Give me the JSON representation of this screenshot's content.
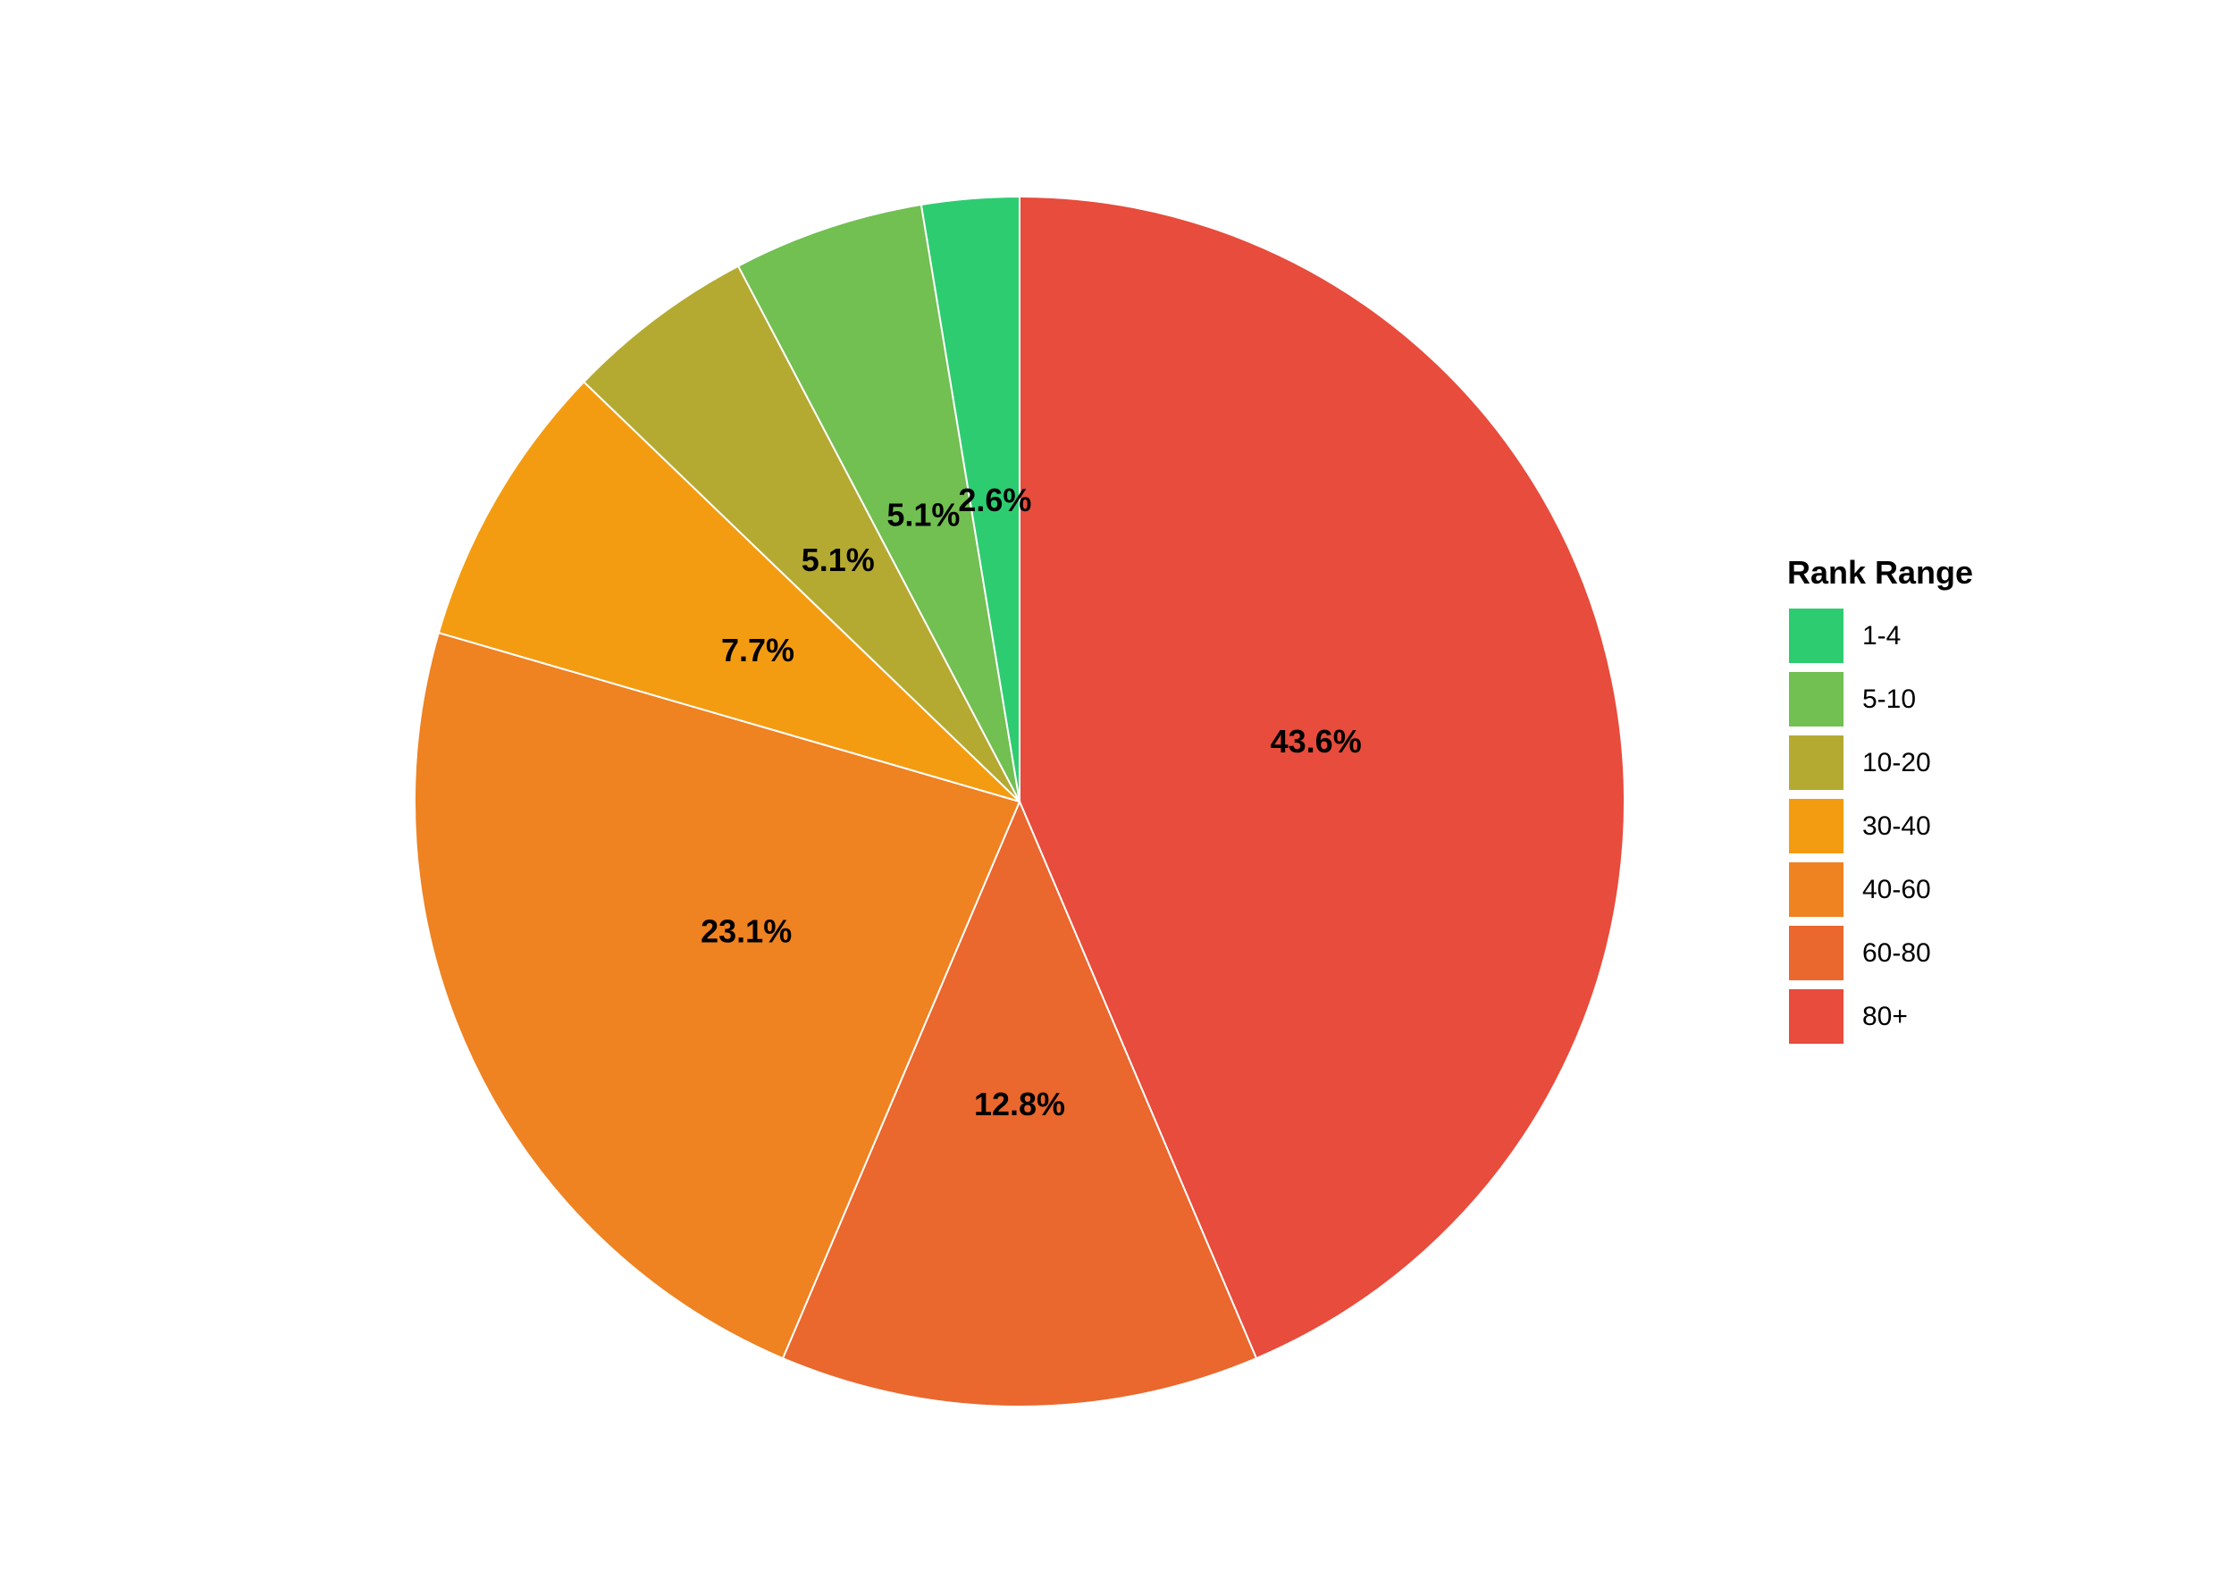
{
  "chart_data": {
    "type": "pie",
    "legend_title": "Rank Range",
    "legend_position": "right",
    "categories": [
      "1-4",
      "5-10",
      "10-20",
      "30-40",
      "40-60",
      "60-80",
      "80+"
    ],
    "values": [
      2.6,
      5.1,
      5.1,
      7.7,
      23.1,
      12.8,
      43.6
    ],
    "labels": [
      "2.6%",
      "5.1%",
      "5.1%",
      "7.7%",
      "23.1%",
      "12.8%",
      "43.6%"
    ],
    "colors": [
      "#2ecc71",
      "#72bf52",
      "#b4aa32",
      "#f39c12",
      "#ef8221",
      "#ea672e",
      "#e74c3c"
    ],
    "slice_order": [
      "80+",
      "60-80",
      "40-60",
      "30-40",
      "10-20",
      "5-10",
      "1-4"
    ],
    "direction": "clockwise from top"
  }
}
